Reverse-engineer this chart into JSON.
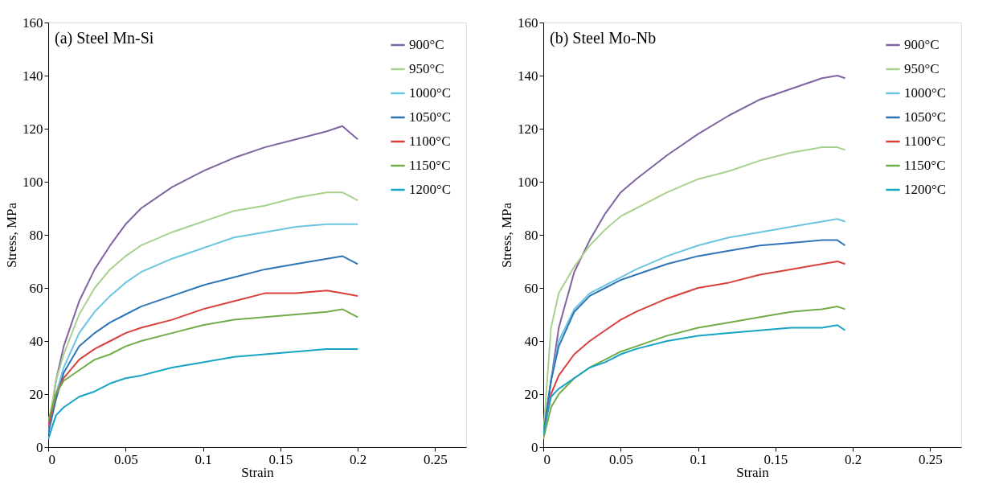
{
  "chart_data": [
    {
      "type": "line",
      "title": "(a) Steel Mn-Si",
      "xlabel": "Strain",
      "ylabel": "Stress, MPa",
      "x": [
        0,
        0.005,
        0.01,
        0.02,
        0.03,
        0.04,
        0.05,
        0.06,
        0.08,
        0.1,
        0.12,
        0.14,
        0.16,
        0.18,
        0.19,
        0.2
      ],
      "series": [
        {
          "name": "900°C",
          "color": "#8064a2",
          "values": [
            5,
            25,
            38,
            55,
            67,
            76,
            84,
            90,
            98,
            104,
            109,
            113,
            116,
            119,
            121,
            116
          ]
        },
        {
          "name": "950°C",
          "color": "#a9d18e",
          "values": [
            8,
            25,
            35,
            50,
            60,
            67,
            72,
            76,
            81,
            85,
            89,
            91,
            94,
            96,
            96,
            93
          ]
        },
        {
          "name": "1000°C",
          "color": "#6cc5e0",
          "values": [
            5,
            20,
            30,
            43,
            51,
            57,
            62,
            66,
            71,
            75,
            79,
            81,
            83,
            84,
            84,
            84
          ]
        },
        {
          "name": "1050°C",
          "color": "#2e75b6",
          "values": [
            5,
            18,
            28,
            38,
            43,
            47,
            50,
            53,
            57,
            61,
            64,
            67,
            69,
            71,
            72,
            69
          ]
        },
        {
          "name": "1100°C",
          "color": "#d9403a",
          "values": [
            8,
            20,
            26,
            33,
            37,
            40,
            43,
            45,
            48,
            52,
            55,
            58,
            58,
            59,
            58,
            57
          ]
        },
        {
          "name": "1150°C",
          "color": "#70ad47",
          "values": [
            10,
            20,
            25,
            29,
            33,
            35,
            38,
            40,
            43,
            46,
            48,
            49,
            50,
            51,
            52,
            49
          ]
        },
        {
          "name": "1200°C",
          "color": "#16a3c4",
          "values": [
            3,
            12,
            15,
            19,
            21,
            24,
            26,
            27,
            30,
            32,
            34,
            35,
            36,
            37,
            37,
            37
          ]
        }
      ],
      "xlim": [
        0,
        0.27
      ],
      "xticks": [
        0,
        0.05,
        0.1,
        0.15,
        0.2,
        0.25
      ],
      "ylim": [
        0,
        160
      ],
      "yticks": [
        0,
        20,
        40,
        60,
        80,
        100,
        120,
        140,
        160
      ],
      "legend": "top right",
      "grid": false,
      "marker": "none",
      "line_style": "solid"
    },
    {
      "type": "line",
      "title": "(b) Steel Mo-Nb",
      "xlabel": "Strain",
      "ylabel": "Stress, MPa",
      "x": [
        0,
        0.005,
        0.01,
        0.02,
        0.03,
        0.04,
        0.05,
        0.06,
        0.08,
        0.1,
        0.12,
        0.14,
        0.16,
        0.18,
        0.19,
        0.195
      ],
      "series": [
        {
          "name": "900°C",
          "color": "#8064a2",
          "values": [
            5,
            25,
            45,
            66,
            78,
            88,
            96,
            101,
            110,
            118,
            125,
            131,
            135,
            139,
            140,
            139
          ]
        },
        {
          "name": "950°C",
          "color": "#a9d18e",
          "values": [
            5,
            45,
            58,
            68,
            76,
            82,
            87,
            90,
            96,
            101,
            104,
            108,
            111,
            113,
            113,
            112
          ]
        },
        {
          "name": "1000°C",
          "color": "#6cc5e0",
          "values": [
            5,
            25,
            40,
            52,
            58,
            61,
            64,
            67,
            72,
            76,
            79,
            81,
            83,
            85,
            86,
            85
          ]
        },
        {
          "name": "1050°C",
          "color": "#2e75b6",
          "values": [
            5,
            25,
            38,
            51,
            57,
            60,
            63,
            65,
            69,
            72,
            74,
            76,
            77,
            78,
            78,
            76
          ]
        },
        {
          "name": "1100°C",
          "color": "#d9403a",
          "values": [
            5,
            20,
            27,
            35,
            40,
            44,
            48,
            51,
            56,
            60,
            62,
            65,
            67,
            69,
            70,
            69
          ]
        },
        {
          "name": "1150°C",
          "color": "#70ad47",
          "values": [
            3,
            15,
            20,
            26,
            30,
            33,
            36,
            38,
            42,
            45,
            47,
            49,
            51,
            52,
            53,
            52
          ]
        },
        {
          "name": "1200°C",
          "color": "#16a3c4",
          "values": [
            5,
            19,
            22,
            26,
            30,
            32,
            35,
            37,
            40,
            42,
            43,
            44,
            45,
            45,
            46,
            44
          ]
        }
      ],
      "xlim": [
        0,
        0.27
      ],
      "xticks": [
        0,
        0.05,
        0.1,
        0.15,
        0.2,
        0.25
      ],
      "ylim": [
        0,
        160
      ],
      "yticks": [
        0,
        20,
        40,
        60,
        80,
        100,
        120,
        140,
        160
      ],
      "legend": "top right",
      "grid": false,
      "marker": "none",
      "line_style": "solid"
    }
  ]
}
